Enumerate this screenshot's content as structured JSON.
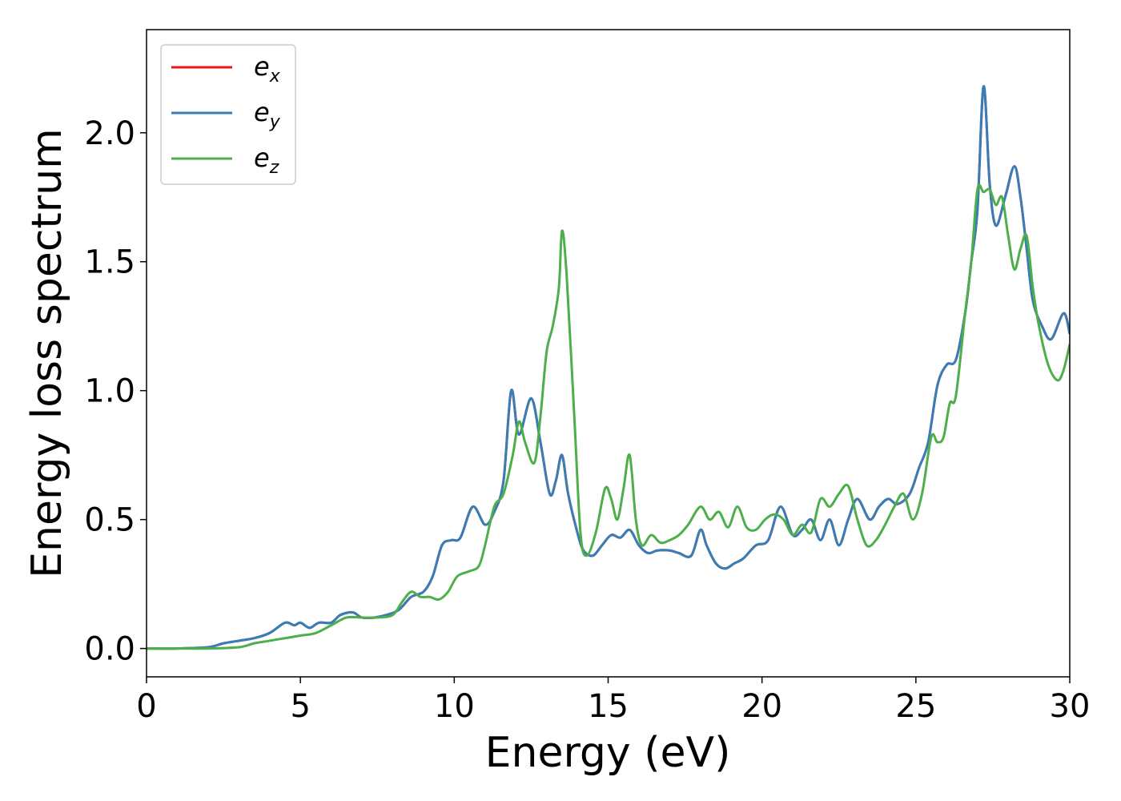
{
  "chart_data": {
    "type": "line",
    "xlabel": "Energy (eV)",
    "ylabel": "Energy loss spectrum",
    "xlim": [
      0,
      30
    ],
    "ylim": [
      -0.11,
      2.4
    ],
    "xticks": [
      0,
      5,
      10,
      15,
      20,
      25,
      30
    ],
    "xtick_labels": [
      "0",
      "5",
      "10",
      "15",
      "20",
      "25",
      "30"
    ],
    "yticks": [
      0.0,
      0.5,
      1.0,
      1.5,
      2.0
    ],
    "ytick_labels": [
      "0.0",
      "0.5",
      "1.0",
      "1.5",
      "2.0"
    ],
    "grid": false,
    "legend_position": "top-left",
    "series": [
      {
        "name": "e",
        "name_sub": "x",
        "color": "#e41a1c",
        "x": [
          0,
          1,
          2,
          2.5,
          3,
          3.5,
          4,
          4.5,
          4.8,
          5,
          5.3,
          5.6,
          6,
          6.3,
          6.7,
          7,
          7.4,
          7.8,
          8.2,
          8.6,
          9,
          9.3,
          9.6,
          9.9,
          10.2,
          10.6,
          11,
          11.3,
          11.6,
          11.85,
          12.1,
          12.5,
          12.8,
          13.1,
          13.3,
          13.5,
          13.7,
          14,
          14.2,
          14.5,
          14.8,
          15.1,
          15.4,
          15.7,
          16,
          16.3,
          16.6,
          17,
          17.3,
          17.7,
          18,
          18.2,
          18.5,
          18.8,
          19.1,
          19.4,
          19.8,
          20.2,
          20.6,
          21,
          21.3,
          21.6,
          21.9,
          22.2,
          22.5,
          22.8,
          23.1,
          23.5,
          23.8,
          24.1,
          24.4,
          24.8,
          25.1,
          25.4,
          25.7,
          26,
          26.3,
          26.6,
          26.8,
          27,
          27.2,
          27.4,
          27.6,
          27.9,
          28.2,
          28.4,
          28.6,
          28.8,
          29.1,
          29.4,
          29.8,
          30
        ],
        "y": [
          0.0,
          0.0,
          0.005,
          0.02,
          0.03,
          0.04,
          0.06,
          0.1,
          0.09,
          0.1,
          0.08,
          0.1,
          0.1,
          0.13,
          0.14,
          0.12,
          0.12,
          0.13,
          0.15,
          0.2,
          0.22,
          0.28,
          0.4,
          0.42,
          0.43,
          0.55,
          0.48,
          0.53,
          0.65,
          1.0,
          0.83,
          0.97,
          0.8,
          0.6,
          0.65,
          0.75,
          0.6,
          0.45,
          0.38,
          0.36,
          0.4,
          0.44,
          0.43,
          0.46,
          0.4,
          0.37,
          0.38,
          0.38,
          0.37,
          0.36,
          0.46,
          0.4,
          0.33,
          0.31,
          0.33,
          0.35,
          0.4,
          0.42,
          0.55,
          0.44,
          0.46,
          0.5,
          0.42,
          0.5,
          0.4,
          0.5,
          0.58,
          0.5,
          0.55,
          0.58,
          0.56,
          0.6,
          0.7,
          0.8,
          1.02,
          1.1,
          1.12,
          1.3,
          1.5,
          1.7,
          2.18,
          1.8,
          1.64,
          1.75,
          1.87,
          1.75,
          1.55,
          1.35,
          1.25,
          1.2,
          1.3,
          1.22
        ]
      },
      {
        "name": "e",
        "name_sub": "y",
        "color": "#377eb8",
        "x": [
          0,
          1,
          2,
          2.5,
          3,
          3.5,
          4,
          4.5,
          4.8,
          5,
          5.3,
          5.6,
          6,
          6.3,
          6.7,
          7,
          7.4,
          7.8,
          8.2,
          8.6,
          9,
          9.3,
          9.6,
          9.9,
          10.2,
          10.6,
          11,
          11.3,
          11.6,
          11.85,
          12.1,
          12.5,
          12.8,
          13.1,
          13.3,
          13.5,
          13.7,
          14,
          14.2,
          14.5,
          14.8,
          15.1,
          15.4,
          15.7,
          16,
          16.3,
          16.6,
          17,
          17.3,
          17.7,
          18,
          18.2,
          18.5,
          18.8,
          19.1,
          19.4,
          19.8,
          20.2,
          20.6,
          21,
          21.3,
          21.6,
          21.9,
          22.2,
          22.5,
          22.8,
          23.1,
          23.5,
          23.8,
          24.1,
          24.4,
          24.8,
          25.1,
          25.4,
          25.7,
          26,
          26.3,
          26.6,
          26.8,
          27,
          27.2,
          27.4,
          27.6,
          27.9,
          28.2,
          28.4,
          28.6,
          28.8,
          29.1,
          29.4,
          29.8,
          30
        ],
        "y": [
          0.0,
          0.0,
          0.005,
          0.02,
          0.03,
          0.04,
          0.06,
          0.1,
          0.09,
          0.1,
          0.08,
          0.1,
          0.1,
          0.13,
          0.14,
          0.12,
          0.12,
          0.13,
          0.15,
          0.2,
          0.22,
          0.28,
          0.4,
          0.42,
          0.43,
          0.55,
          0.48,
          0.53,
          0.65,
          1.0,
          0.83,
          0.97,
          0.8,
          0.6,
          0.65,
          0.75,
          0.6,
          0.45,
          0.38,
          0.36,
          0.4,
          0.44,
          0.43,
          0.46,
          0.4,
          0.37,
          0.38,
          0.38,
          0.37,
          0.36,
          0.46,
          0.4,
          0.33,
          0.31,
          0.33,
          0.35,
          0.4,
          0.42,
          0.55,
          0.44,
          0.46,
          0.5,
          0.42,
          0.5,
          0.4,
          0.5,
          0.58,
          0.5,
          0.55,
          0.58,
          0.56,
          0.6,
          0.7,
          0.8,
          1.02,
          1.1,
          1.12,
          1.3,
          1.5,
          1.7,
          2.18,
          1.8,
          1.64,
          1.75,
          1.87,
          1.75,
          1.55,
          1.35,
          1.25,
          1.2,
          1.3,
          1.22
        ]
      },
      {
        "name": "e",
        "name_sub": "z",
        "color": "#4daf4a",
        "x": [
          0,
          1,
          2,
          3,
          3.5,
          4,
          4.5,
          5,
          5.5,
          6,
          6.5,
          7,
          7.5,
          8,
          8.3,
          8.6,
          8.9,
          9.2,
          9.5,
          9.8,
          10.1,
          10.5,
          10.8,
          11,
          11.3,
          11.6,
          11.9,
          12.1,
          12.3,
          12.6,
          12.8,
          13,
          13.2,
          13.4,
          13.5,
          13.65,
          13.9,
          14.1,
          14.3,
          14.6,
          14.9,
          15.1,
          15.3,
          15.5,
          15.7,
          15.9,
          16.1,
          16.4,
          16.7,
          17,
          17.3,
          17.6,
          18,
          18.3,
          18.6,
          18.9,
          19.2,
          19.5,
          19.8,
          20.1,
          20.4,
          20.7,
          21,
          21.3,
          21.6,
          21.9,
          22.2,
          22.5,
          22.8,
          23.1,
          23.4,
          23.7,
          24,
          24.3,
          24.6,
          24.9,
          25.2,
          25.5,
          25.7,
          25.9,
          26.1,
          26.3,
          26.6,
          26.8,
          27,
          27.2,
          27.4,
          27.6,
          27.8,
          28,
          28.2,
          28.4,
          28.6,
          28.8,
          29,
          29.3,
          29.6,
          29.8,
          30
        ],
        "y": [
          0.0,
          0.0,
          0.0,
          0.005,
          0.02,
          0.03,
          0.04,
          0.05,
          0.06,
          0.09,
          0.12,
          0.12,
          0.12,
          0.13,
          0.18,
          0.22,
          0.2,
          0.2,
          0.19,
          0.22,
          0.28,
          0.3,
          0.32,
          0.4,
          0.55,
          0.6,
          0.75,
          0.88,
          0.8,
          0.72,
          0.9,
          1.15,
          1.25,
          1.4,
          1.62,
          1.45,
          0.9,
          0.45,
          0.36,
          0.45,
          0.62,
          0.58,
          0.5,
          0.62,
          0.75,
          0.5,
          0.4,
          0.44,
          0.41,
          0.42,
          0.44,
          0.48,
          0.55,
          0.5,
          0.53,
          0.47,
          0.55,
          0.47,
          0.46,
          0.5,
          0.52,
          0.5,
          0.44,
          0.48,
          0.45,
          0.58,
          0.55,
          0.6,
          0.63,
          0.5,
          0.4,
          0.42,
          0.48,
          0.55,
          0.6,
          0.5,
          0.6,
          0.82,
          0.8,
          0.82,
          0.95,
          0.98,
          1.3,
          1.5,
          1.78,
          1.77,
          1.78,
          1.72,
          1.75,
          1.6,
          1.47,
          1.55,
          1.6,
          1.4,
          1.25,
          1.1,
          1.04,
          1.08,
          1.18
        ]
      }
    ]
  }
}
